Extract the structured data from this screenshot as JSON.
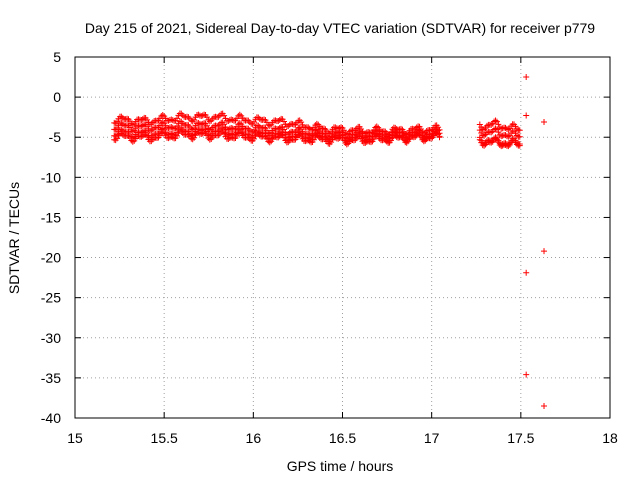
{
  "chart_data": {
    "type": "scatter",
    "title": "Day 215 of 2021, Sidereal Day-to-day VTEC variation (SDTVAR) for receiver p779",
    "xlabel": "GPS time / hours",
    "ylabel": "SDTVAR / TECUs",
    "xlim": [
      15,
      18
    ],
    "ylim": [
      -40,
      5
    ],
    "x_ticks": [
      "15",
      "15.5",
      "16",
      "16.5",
      "17",
      "17.5",
      "18"
    ],
    "y_ticks": [
      "5",
      "0",
      "-5",
      "-10",
      "-15",
      "-20",
      "-25",
      "-30",
      "-35",
      "-40"
    ],
    "grid": true,
    "legend": "none",
    "point_color": "#ff0000",
    "point_marker": "+",
    "series": [
      {
        "bands": [
          {
            "x": [
              15.22,
              15.4,
              15.6,
              15.8,
              16.0,
              16.2,
              16.4,
              16.6,
              16.8,
              17.0,
              17.05
            ],
            "y": [
              -2.8,
              -3.0,
              -2.5,
              -2.5,
              -2.9,
              -3.2,
              -4.0,
              -4.2,
              -4.2,
              -4.0,
              -4.1
            ]
          },
          {
            "x": [
              15.22,
              15.4,
              15.6,
              15.8,
              16.0,
              16.2,
              16.4,
              16.6,
              16.8,
              17.0,
              17.05
            ],
            "y": [
              -3.6,
              -3.8,
              -3.5,
              -3.6,
              -3.9,
              -4.2,
              -4.6,
              -4.7,
              -4.6,
              -4.5,
              -4.5
            ]
          },
          {
            "x": [
              15.22,
              15.4,
              15.6,
              15.8,
              16.0,
              16.2,
              16.4,
              16.6,
              16.8,
              17.0,
              17.05
            ],
            "y": [
              -4.4,
              -4.6,
              -4.3,
              -4.3,
              -4.6,
              -4.8,
              -5.0,
              -5.1,
              -5.0,
              -4.8,
              -4.9
            ]
          },
          {
            "x": [
              15.22,
              15.4,
              15.6,
              15.8,
              16.0,
              16.2,
              16.4,
              16.6,
              16.8,
              17.0,
              17.05
            ],
            "y": [
              -4.9,
              -5.1,
              -4.7,
              -4.8,
              -5.0,
              -5.2,
              -5.3,
              -5.4,
              -5.2,
              -5.0,
              -5.0
            ]
          },
          {
            "x": [
              17.27,
              17.35,
              17.42,
              17.5
            ],
            "y": [
              -3.6,
              -3.4,
              -3.7,
              -4.1
            ]
          },
          {
            "x": [
              17.27,
              17.35,
              17.42,
              17.5
            ],
            "y": [
              -4.3,
              -4.4,
              -4.6,
              -4.9
            ]
          },
          {
            "x": [
              17.27,
              17.35,
              17.42,
              17.5
            ],
            "y": [
              -5.2,
              -5.5,
              -5.6,
              -5.8
            ]
          },
          {
            "x": [
              17.27,
              17.35,
              17.42,
              17.5
            ],
            "y": [
              -5.5,
              -5.7,
              -5.8,
              -6.0
            ]
          }
        ],
        "outliers": [
          {
            "x": 17.53,
            "y": 2.5
          },
          {
            "x": 17.53,
            "y": -2.3
          },
          {
            "x": 17.63,
            "y": -3.1
          },
          {
            "x": 17.63,
            "y": -19.2
          },
          {
            "x": 17.53,
            "y": -21.9
          },
          {
            "x": 17.53,
            "y": -34.6
          },
          {
            "x": 17.63,
            "y": -38.5
          }
        ]
      }
    ]
  }
}
